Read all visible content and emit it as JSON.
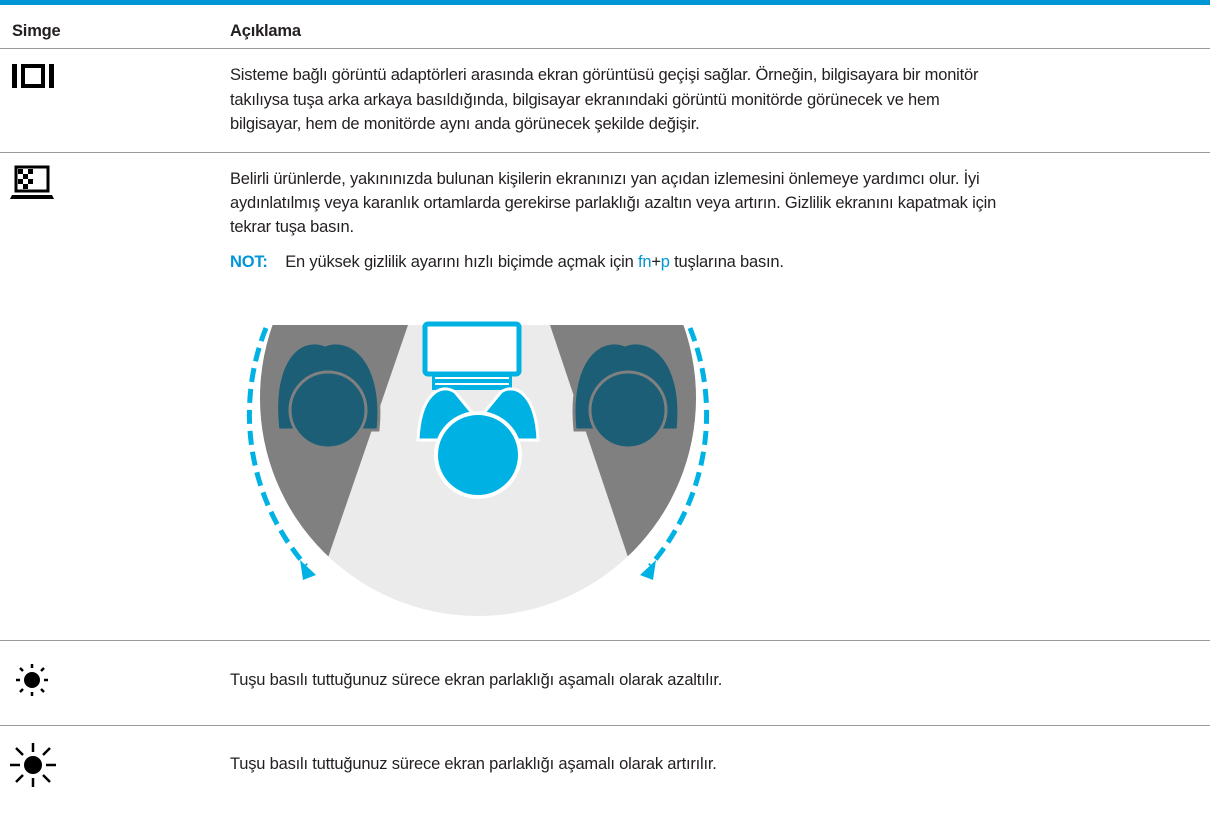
{
  "table": {
    "header": [
      "Simge",
      "Açıklama"
    ],
    "rows": [
      {
        "description": [
          "Sisteme bağlı görüntü adaptörleri arasında ekran görüntüsü geçişi sağlar. Örneğin, bilgisayara bir monitör",
          "takılıysa tuşa arka arkaya basıldığında, bilgisayar ekranındaki görüntü monitörde görünecek ve hem",
          "bilgisayar, hem de monitörde aynı anda görünecek şekilde değişir."
        ]
      },
      {
        "description": [
          "Belirli ürünlerde, yakınınızda bulunan kişilerin ekranınızı yan açıdan izlemesini önlemeye yardımcı olur. İyi",
          "aydınlatılmış veya karanlık ortamlarda gerekirse parlaklığı azaltın veya artırın. Gizlilik ekranını kapatmak için",
          "tekrar tuşa basın."
        ],
        "note": {
          "label": "NOT:",
          "text": "En yüksek gizlilik ayarını hızlı biçimde açmak için ",
          "key1": "fn",
          "plus": "+",
          "key2": "p",
          "after": " tuşlarına basın."
        }
      },
      {
        "description": [
          "Tuşu basılı tuttuğunuz sürece ekran parlaklığı aşamalı olarak azaltılır."
        ]
      },
      {
        "description": [
          "Tuşu basılı tuttuğunuz sürece ekran parlaklığı aşamalı olarak artırılır."
        ]
      }
    ]
  }
}
